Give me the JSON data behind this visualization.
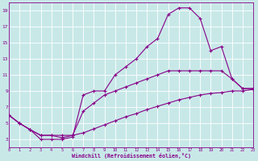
{
  "bg_color": "#c8e8e8",
  "grid_color": "#ffffff",
  "line_color": "#880088",
  "xlabel": "Windchill (Refroidissement éolien,°C)",
  "xlim": [
    0,
    23
  ],
  "ylim": [
    2,
    20
  ],
  "xticks": [
    0,
    1,
    2,
    3,
    4,
    5,
    6,
    7,
    8,
    9,
    10,
    11,
    12,
    13,
    14,
    15,
    16,
    17,
    18,
    19,
    20,
    21,
    22,
    23
  ],
  "yticks": [
    3,
    5,
    7,
    9,
    11,
    13,
    15,
    17,
    19
  ],
  "series": [
    {
      "x": [
        0,
        1,
        2,
        3,
        4,
        5,
        6,
        7,
        8,
        9,
        10,
        11,
        12,
        13,
        14,
        15,
        16,
        17,
        18,
        19,
        20,
        21,
        22,
        23
      ],
      "y": [
        6.0,
        5.0,
        4.2,
        3.5,
        3.5,
        3.5,
        3.5,
        3.8,
        4.3,
        4.8,
        5.3,
        5.8,
        6.2,
        6.7,
        7.1,
        7.5,
        7.9,
        8.2,
        8.5,
        8.7,
        8.8,
        9.0,
        9.0,
        9.2
      ]
    },
    {
      "x": [
        0,
        1,
        2,
        3,
        4,
        5,
        6,
        7,
        8,
        9,
        10,
        11,
        12,
        13,
        14,
        15,
        16,
        17,
        18,
        19,
        20,
        21,
        22,
        23
      ],
      "y": [
        6.0,
        5.0,
        4.2,
        3.5,
        3.5,
        3.2,
        3.5,
        6.5,
        7.5,
        8.5,
        9.0,
        9.5,
        10.0,
        10.5,
        11.0,
        11.5,
        11.5,
        11.5,
        11.5,
        11.5,
        11.5,
        10.5,
        9.3,
        9.3
      ]
    },
    {
      "x": [
        0,
        1,
        2,
        3,
        4,
        5,
        6,
        7,
        8,
        9,
        10,
        11,
        12,
        13,
        14,
        15,
        16,
        17,
        18,
        19,
        20,
        21,
        22,
        23
      ],
      "y": [
        6.0,
        5.0,
        4.2,
        3.0,
        3.0,
        3.0,
        3.3,
        8.5,
        9.0,
        9.0,
        11.0,
        12.0,
        13.0,
        14.5,
        15.5,
        18.5,
        19.3,
        19.3,
        18.0,
        14.0,
        14.5,
        10.5,
        9.3,
        9.3
      ]
    }
  ]
}
